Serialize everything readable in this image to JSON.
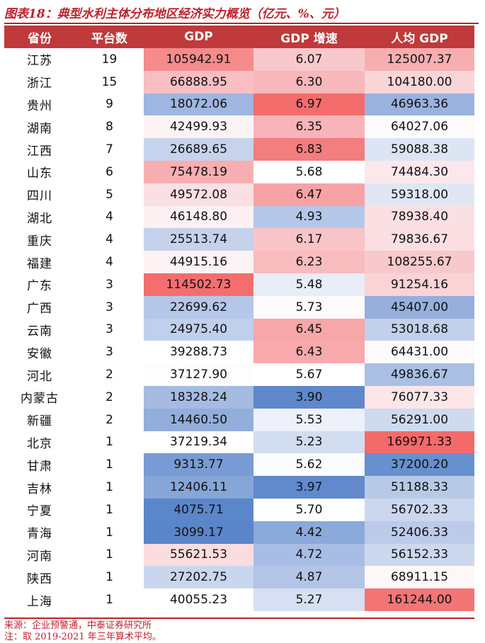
{
  "title": "图表18：典型水利主体分布地区经济实力概览（亿元、%、元）",
  "headers": [
    "省份",
    "平台数",
    "GDP",
    "GDP 增速",
    "人均 GDP"
  ],
  "rows": [
    {
      "province": "江苏",
      "count": "19",
      "gdp": "105942.91",
      "growth": "6.07",
      "per_capita": "125007.37",
      "colors": [
        "#f58b8b",
        "#f7c9cc",
        "#f7aeb1"
      ]
    },
    {
      "province": "浙江",
      "count": "15",
      "gdp": "66888.95",
      "growth": "6.30",
      "per_capita": "104180.00",
      "colors": [
        "#f8bec2",
        "#f8b7bb",
        "#f9d5d8"
      ]
    },
    {
      "province": "贵州",
      "count": "9",
      "gdp": "18072.06",
      "growth": "6.97",
      "per_capita": "46963.36",
      "colors": [
        "#9fb6e0",
        "#f36c6c",
        "#9ab2de"
      ]
    },
    {
      "province": "湖南",
      "count": "8",
      "gdp": "42499.93",
      "growth": "6.35",
      "per_capita": "64027.06",
      "colors": [
        "#fcf3f5",
        "#f8b4b8",
        "#fdfafb"
      ]
    },
    {
      "province": "江西",
      "count": "7",
      "gdp": "26689.65",
      "growth": "6.83",
      "per_capita": "59088.38",
      "colors": [
        "#c5d3ec",
        "#f47d7e",
        "#dde5f4"
      ]
    },
    {
      "province": "山东",
      "count": "6",
      "gdp": "75478.19",
      "growth": "5.68",
      "per_capita": "74484.30",
      "colors": [
        "#f8aeb1",
        "#ffffff",
        "#fce8ea"
      ]
    },
    {
      "province": "四川",
      "count": "5",
      "gdp": "49572.08",
      "growth": "6.47",
      "per_capita": "59318.00",
      "colors": [
        "#fbe0e3",
        "#f7a3a6",
        "#dfe6f4"
      ]
    },
    {
      "province": "湖北",
      "count": "4",
      "gdp": "46148.80",
      "growth": "4.93",
      "per_capita": "78938.40",
      "colors": [
        "#fdf0f2",
        "#b5c7e8",
        "#fbe0e3"
      ]
    },
    {
      "province": "重庆",
      "count": "4",
      "gdp": "25513.74",
      "growth": "6.17",
      "per_capita": "79836.67",
      "colors": [
        "#c4d2ec",
        "#f8c4c7",
        "#fbdfe2"
      ]
    },
    {
      "province": "福建",
      "count": "4",
      "gdp": "44915.16",
      "growth": "6.23",
      "per_capita": "108255.67",
      "colors": [
        "#fdf3f5",
        "#f8bcbf",
        "#f8c9cc"
      ]
    },
    {
      "province": "广东",
      "count": "3",
      "gdp": "114502.73",
      "growth": "5.48",
      "per_capita": "91254.16",
      "colors": [
        "#f46e6e",
        "#e8edf7",
        "#f9d3d6"
      ]
    },
    {
      "province": "广西",
      "count": "3",
      "gdp": "22699.62",
      "growth": "5.73",
      "per_capita": "45407.00",
      "colors": [
        "#b5c7e8",
        "#fdfafb",
        "#96afdc"
      ]
    },
    {
      "province": "云南",
      "count": "3",
      "gdp": "24975.40",
      "growth": "6.45",
      "per_capita": "53018.68",
      "colors": [
        "#c0cfeb",
        "#f7a6a9",
        "#c2d0eb"
      ]
    },
    {
      "province": "安徽",
      "count": "3",
      "gdp": "39288.73",
      "growth": "6.43",
      "per_capita": "64431.00",
      "colors": [
        "#ffffff",
        "#f7a9ac",
        "#fdfafb"
      ]
    },
    {
      "province": "河北",
      "count": "2",
      "gdp": "37127.90",
      "growth": "5.67",
      "per_capita": "49836.67",
      "colors": [
        "#fdfdfe",
        "#ffffff",
        "#aabfe4"
      ]
    },
    {
      "province": "内蒙古",
      "count": "2",
      "gdp": "18328.24",
      "growth": "3.90",
      "per_capita": "76077.33",
      "colors": [
        "#a5bbe2",
        "#5f88cb",
        "#fce6e8"
      ]
    },
    {
      "province": "新疆",
      "count": "2",
      "gdp": "14460.50",
      "growth": "5.53",
      "per_capita": "56291.00",
      "colors": [
        "#93aedb",
        "#edf1f9",
        "#cfdaef"
      ]
    },
    {
      "province": "北京",
      "count": "1",
      "gdp": "37219.34",
      "growth": "5.23",
      "per_capita": "169971.33",
      "colors": [
        "#ffffff",
        "#d3ddf0",
        "#f36a6a"
      ]
    },
    {
      "province": "甘肃",
      "count": "1",
      "gdp": "9313.77",
      "growth": "5.62",
      "per_capita": "37200.20",
      "colors": [
        "#789bd3",
        "#fbfcfe",
        "#6690ce"
      ]
    },
    {
      "province": "吉林",
      "count": "1",
      "gdp": "12406.11",
      "growth": "3.97",
      "per_capita": "51188.33",
      "colors": [
        "#87a6d8",
        "#6189cc",
        "#b8c9e8"
      ]
    },
    {
      "province": "宁夏",
      "count": "1",
      "gdp": "4075.71",
      "growth": "5.70",
      "per_capita": "56702.33",
      "colors": [
        "#5b86c9",
        "#fcfdfe",
        "#cbd7ee"
      ]
    },
    {
      "province": "青海",
      "count": "1",
      "gdp": "3099.17",
      "growth": "4.42",
      "per_capita": "52406.33",
      "colors": [
        "#5a85c9",
        "#8ba9d9",
        "#bccbea"
      ]
    },
    {
      "province": "河南",
      "count": "1",
      "gdp": "55621.53",
      "growth": "4.72",
      "per_capita": "56152.33",
      "colors": [
        "#fbdcdf",
        "#a8bde4",
        "#ccd8ee"
      ]
    },
    {
      "province": "陕西",
      "count": "1",
      "gdp": "27202.75",
      "growth": "4.87",
      "per_capita": "68911.15",
      "colors": [
        "#c9d6ee",
        "#b2c5e7",
        "#fdf7f8"
      ]
    },
    {
      "province": "上海",
      "count": "1",
      "gdp": "40055.23",
      "growth": "5.27",
      "per_capita": "161244.00",
      "colors": [
        "#ffffff",
        "#d7e0f2",
        "#f47575"
      ]
    }
  ],
  "footer": {
    "source": "来源：企业预警通，中泰证券研究所",
    "note": "注：取 2019-2021 年三年算术平均。"
  }
}
